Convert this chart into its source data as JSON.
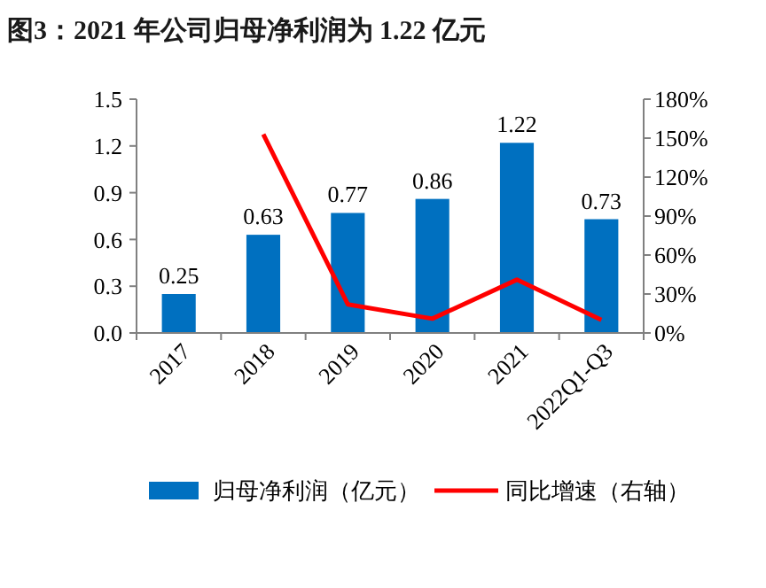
{
  "chart_data": {
    "type": "bar",
    "title": "图3：2021 年公司归母净利润为 1.22 亿元",
    "categories": [
      "2017",
      "2018",
      "2019",
      "2020",
      "2021",
      "2022Q1-Q3"
    ],
    "series": [
      {
        "name": "归母净利润（亿元）",
        "color": "#0070c0",
        "values": [
          0.25,
          0.63,
          0.77,
          0.86,
          1.22,
          0.73
        ],
        "value_labels": [
          "0.25",
          "0.63",
          "0.77",
          "0.86",
          "1.22",
          "0.73"
        ]
      },
      {
        "name": "同比增速（右轴）",
        "type": "line",
        "axis": "y2",
        "color": "#ff0000",
        "values": [
          null,
          153,
          22,
          11,
          41,
          10
        ]
      }
    ],
    "ylim": [
      0,
      1.5
    ],
    "yticks": [
      {
        "value": 0,
        "label": "0.0"
      },
      0.3,
      0.6,
      0.9,
      1.2,
      1.5
    ],
    "y2lim": [
      0,
      180
    ],
    "y2ticks": [
      {
        "value": 0,
        "label": "0%"
      },
      {
        "value": 30,
        "label": "30%"
      },
      {
        "value": 60,
        "label": "60%"
      },
      {
        "value": 90,
        "label": "90%"
      },
      {
        "value": 120,
        "label": "120%"
      },
      {
        "value": 150,
        "label": "150%"
      },
      {
        "value": 180,
        "label": "180%"
      }
    ],
    "legend": "bottom",
    "grid": false
  }
}
